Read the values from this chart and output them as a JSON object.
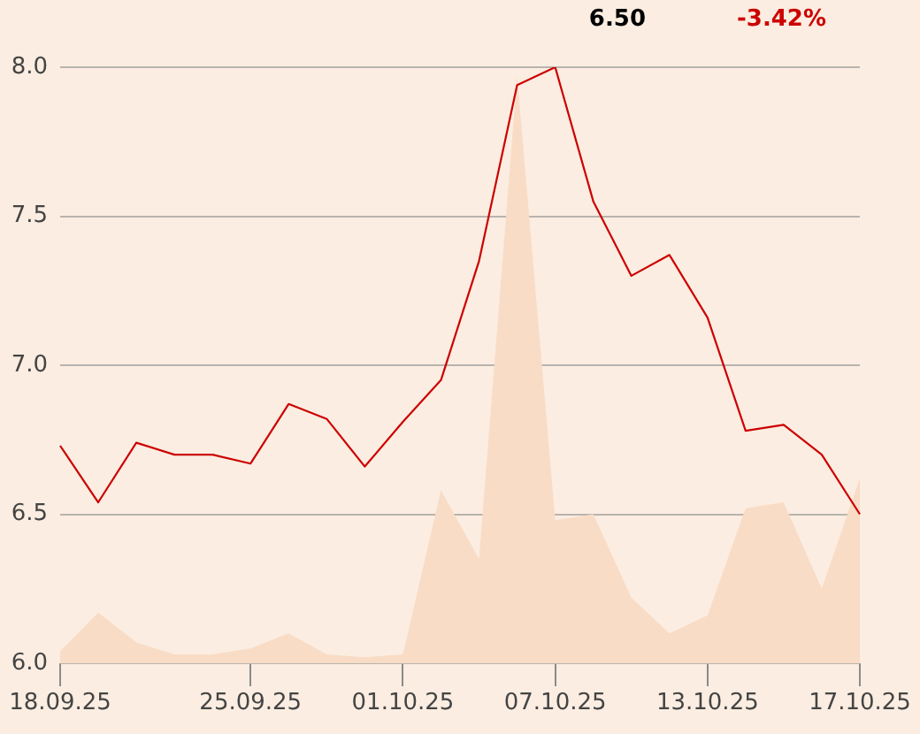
{
  "chart_data": {
    "type": "line",
    "annotations": [
      "6.50",
      "-3.42%"
    ],
    "categories": [
      "18.09.25",
      null,
      null,
      null,
      null,
      "25.09.25",
      null,
      null,
      null,
      "01.10.25",
      null,
      null,
      null,
      "07.10.25",
      null,
      null,
      null,
      "13.10.25",
      null,
      null,
      null,
      "17.10.25"
    ],
    "series": [
      {
        "type": "line",
        "color": "#cc0000",
        "values": [
          6.73,
          6.54,
          6.74,
          6.7,
          6.7,
          6.67,
          6.87,
          6.82,
          6.66,
          6.81,
          6.95,
          7.35,
          7.94,
          8.0,
          7.55,
          7.3,
          7.37,
          7.16,
          6.78,
          6.8,
          6.7,
          6.5
        ]
      },
      {
        "type": "area",
        "color": "#f8dcc6",
        "values": [
          6.04,
          6.17,
          6.07,
          6.03,
          6.03,
          6.05,
          6.1,
          6.03,
          6.02,
          6.03,
          6.58,
          6.35,
          7.97,
          6.48,
          6.5,
          6.22,
          6.1,
          6.16,
          6.52,
          6.54,
          6.25,
          6.62
        ]
      }
    ],
    "ylim": [
      6,
      8
    ],
    "yticks": [
      {
        "value": 6,
        "label": "6.0"
      },
      6.5,
      {
        "value": 7,
        "label": "7.0"
      },
      7.5,
      {
        "value": 8,
        "label": "8.0"
      }
    ],
    "grid": "y",
    "legend": false,
    "marker": "none"
  }
}
